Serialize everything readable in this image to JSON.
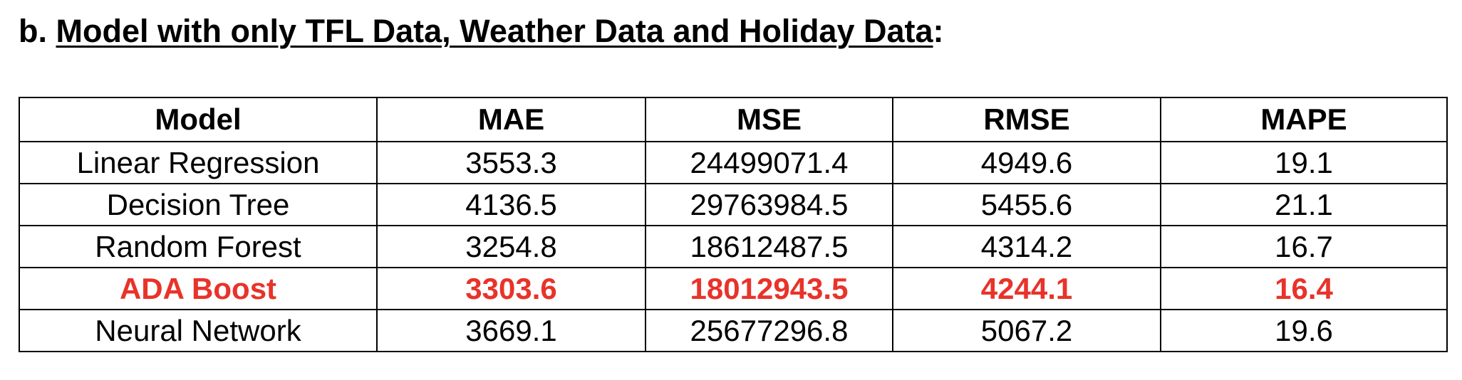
{
  "heading": {
    "prefix": "b. ",
    "title": "Model with only TFL Data, Weather Data and Holiday Data",
    "suffix": ":"
  },
  "table": {
    "columns": [
      "Model",
      "MAE",
      "MSE",
      "RMSE",
      "MAPE"
    ],
    "rows": [
      {
        "model": "Linear Regression",
        "mae": "3553.3",
        "mse": "24499071.4",
        "rmse": "4949.6",
        "mape": "19.1"
      },
      {
        "model": "Decision Tree",
        "mae": "4136.5",
        "mse": "29763984.5",
        "rmse": "5455.6",
        "mape": "21.1"
      },
      {
        "model": "Random Forest",
        "mae": "3254.8",
        "mse": "18612487.5",
        "rmse": "4314.2",
        "mape": "16.7"
      },
      {
        "model": "ADA Boost",
        "mae": "3303.6",
        "mse": "18012943.5",
        "rmse": "4244.1",
        "mape": "16.4"
      },
      {
        "model": "Neural Network",
        "mae": "3669.1",
        "mse": "25677296.8",
        "rmse": "5067.2",
        "mape": "19.6"
      }
    ],
    "highlight_row": "ADA Boost",
    "highlight_color": "#e8332a"
  }
}
